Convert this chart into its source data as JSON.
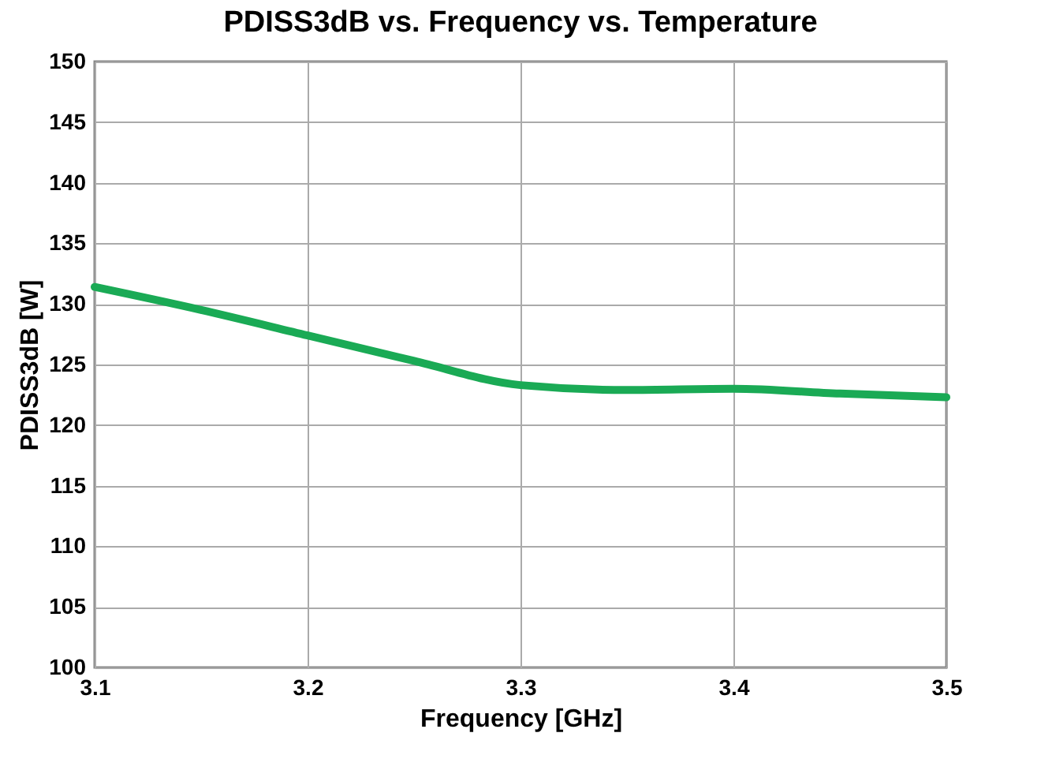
{
  "chart_data": {
    "type": "line",
    "title": "PDISS3dB  vs. Frequency vs. Temperature",
    "xlabel": "Frequency [GHz]",
    "ylabel": "PDISS3dB [W]",
    "x": [
      3.1,
      3.15,
      3.2,
      3.25,
      3.3,
      3.35,
      3.4,
      3.45,
      3.5
    ],
    "series": [
      {
        "color": "#1aaa55",
        "values": [
          131.4,
          129.5,
          127.4,
          125.3,
          123.3,
          122.9,
          123.0,
          122.6,
          122.3
        ]
      }
    ],
    "xlim": [
      3.1,
      3.5
    ],
    "xticks": [
      3.1,
      3.2,
      3.3,
      3.4,
      3.5
    ],
    "ylim": [
      100,
      150
    ],
    "yticks": [
      100,
      105,
      110,
      115,
      120,
      125,
      130,
      135,
      140,
      145,
      150
    ],
    "grid": true,
    "marker": "none",
    "line_style": "solid"
  }
}
